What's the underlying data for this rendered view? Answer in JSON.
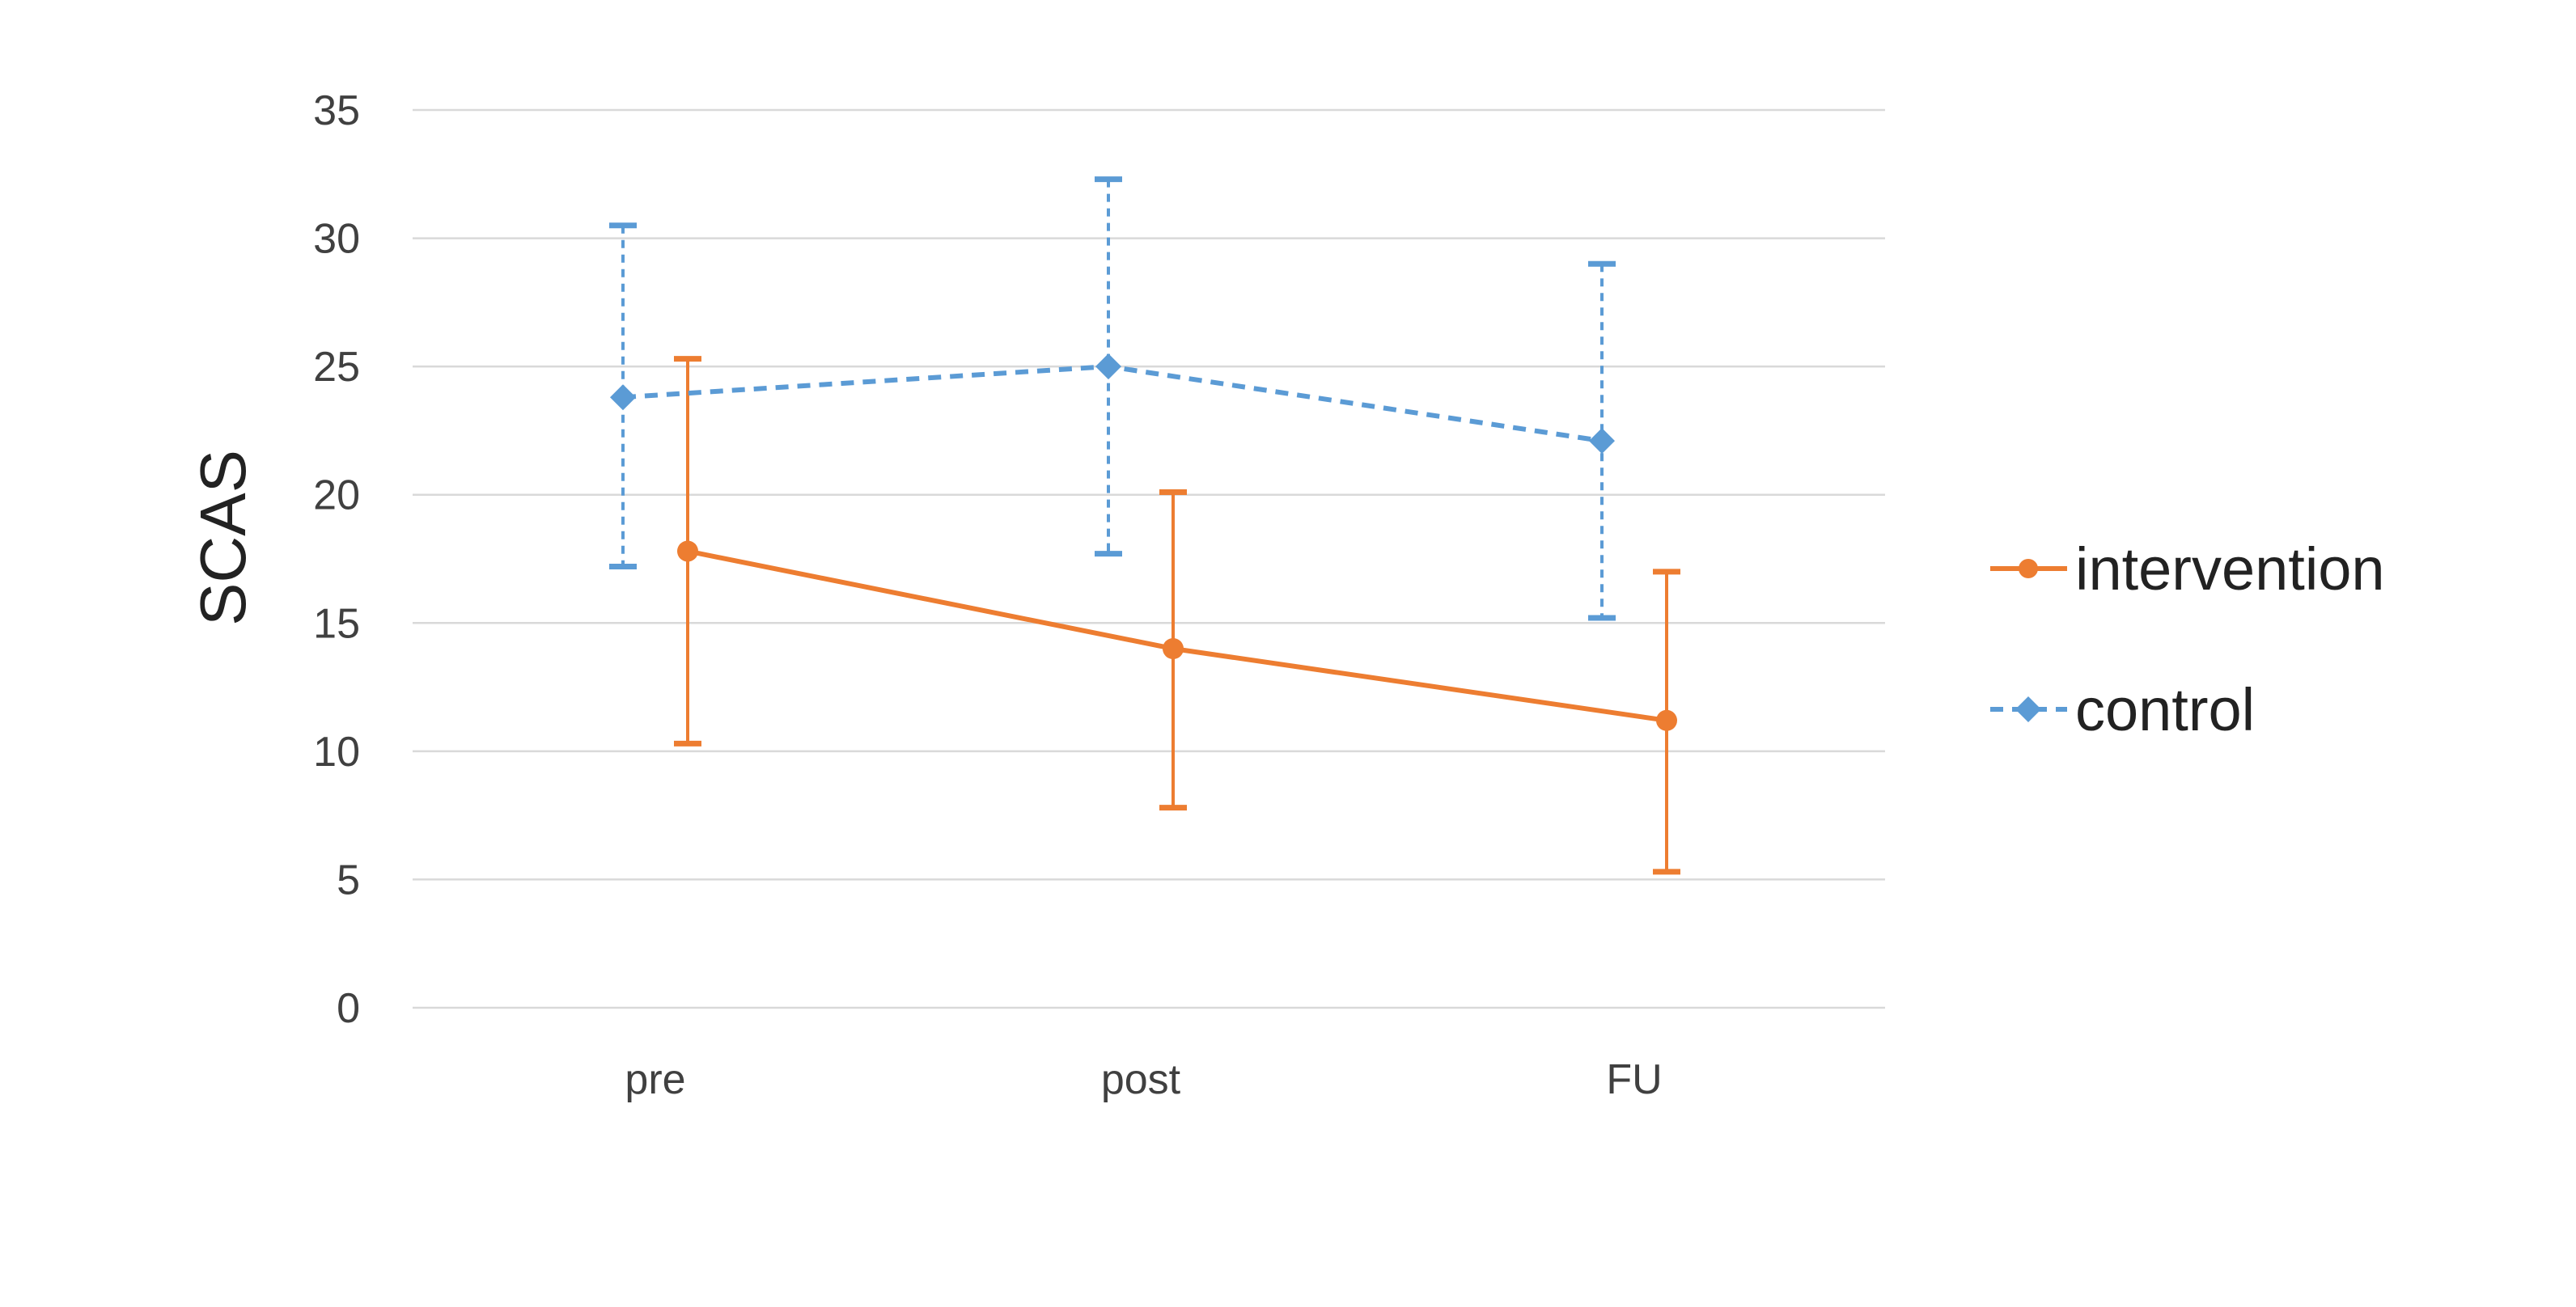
{
  "chart_data": {
    "type": "line",
    "title": "",
    "xlabel": "",
    "ylabel": "SCAS",
    "categories": [
      "pre",
      "post",
      "FU"
    ],
    "ylim": [
      0,
      35
    ],
    "yticks": [
      0,
      5,
      10,
      15,
      20,
      25,
      30,
      35
    ],
    "grid": true,
    "legend_position": "right",
    "series": [
      {
        "name": "intervention",
        "values": [
          17.8,
          14.0,
          11.2
        ],
        "error_low": [
          10.3,
          7.8,
          5.3
        ],
        "error_high": [
          25.3,
          20.1,
          17.0
        ],
        "color": "#ED7D31",
        "line_style": "solid",
        "marker": "circle"
      },
      {
        "name": "control",
        "values": [
          23.8,
          25.0,
          22.1
        ],
        "error_low": [
          17.2,
          17.7,
          15.2
        ],
        "error_high": [
          30.5,
          32.3,
          29.0
        ],
        "color": "#5B9BD5",
        "line_style": "dashed",
        "marker": "diamond"
      }
    ]
  }
}
